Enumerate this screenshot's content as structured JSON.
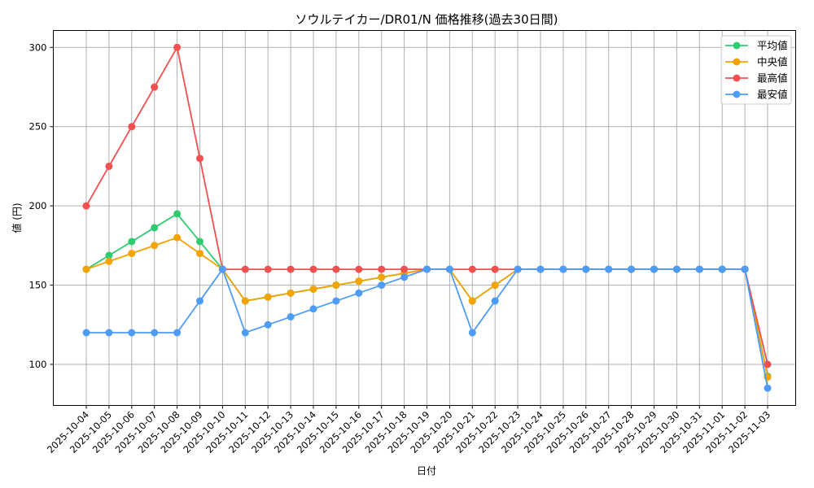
{
  "chart_data": {
    "type": "line",
    "title": "ソウルテイカー/DR01/N 価格推移(過去30日間)",
    "xlabel": "日付",
    "ylabel": "値 (円)",
    "ylim": [
      75,
      311
    ],
    "yticks": [
      100,
      150,
      200,
      250,
      300
    ],
    "grid": true,
    "legend_position": "upper right",
    "x": [
      "2025-10-04",
      "2025-10-05",
      "2025-10-06",
      "2025-10-07",
      "2025-10-08",
      "2025-10-09",
      "2025-10-10",
      "2025-10-11",
      "2025-10-12",
      "2025-10-13",
      "2025-10-14",
      "2025-10-15",
      "2025-10-16",
      "2025-10-17",
      "2025-10-18",
      "2025-10-19",
      "2025-10-20",
      "2025-10-21",
      "2025-10-22",
      "2025-10-23",
      "2025-10-24",
      "2025-10-25",
      "2025-10-26",
      "2025-10-27",
      "2025-10-28",
      "2025-10-29",
      "2025-10-30",
      "2025-10-31",
      "2025-11-01",
      "2025-11-02",
      "2025-11-03"
    ],
    "series": [
      {
        "name": "平均値",
        "color": "#2ecc71",
        "values": [
          160,
          168.75,
          177.5,
          186.25,
          195,
          177.5,
          160,
          140,
          142.5,
          145,
          147.5,
          150,
          152.5,
          155,
          157.5,
          160,
          160,
          140,
          150,
          160,
          160,
          160,
          160,
          160,
          160,
          160,
          160,
          160,
          160,
          160,
          92.5
        ]
      },
      {
        "name": "中央値",
        "color": "#f5a300",
        "values": [
          160,
          165,
          170,
          175,
          180,
          170,
          160,
          140,
          142.5,
          145,
          147.5,
          150,
          152.5,
          155,
          157.5,
          160,
          160,
          140,
          150,
          160,
          160,
          160,
          160,
          160,
          160,
          160,
          160,
          160,
          160,
          160,
          92
        ]
      },
      {
        "name": "最高値",
        "color": "#f05050",
        "values": [
          200,
          225,
          250,
          275,
          300,
          230,
          160,
          160,
          160,
          160,
          160,
          160,
          160,
          160,
          160,
          160,
          160,
          160,
          160,
          160,
          160,
          160,
          160,
          160,
          160,
          160,
          160,
          160,
          160,
          160,
          100
        ]
      },
      {
        "name": "最安値",
        "color": "#4d9cf8",
        "values": [
          120,
          120,
          120,
          120,
          120,
          140,
          160,
          120,
          125,
          130,
          135,
          140,
          145,
          150,
          155,
          160,
          160,
          120,
          140,
          160,
          160,
          160,
          160,
          160,
          160,
          160,
          160,
          160,
          160,
          160,
          85
        ]
      }
    ]
  }
}
